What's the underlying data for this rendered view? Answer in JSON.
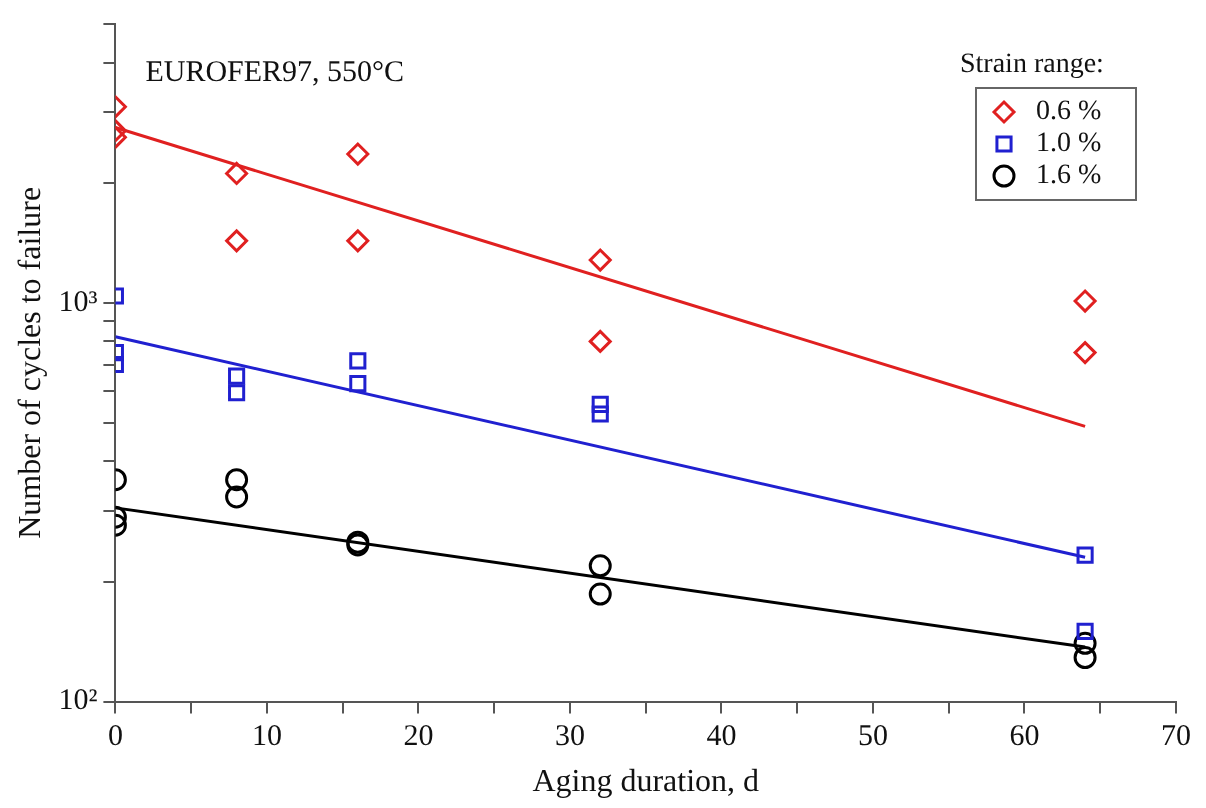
{
  "chart_data": {
    "type": "scatter",
    "xlabel": "Aging duration, d",
    "ylabel": "Number of cycles to failure",
    "legend_title": "Strain range:",
    "legend": "top right",
    "grid": false,
    "log": "y",
    "annotations": [
      "EUROFER97, 550°C"
    ],
    "xlim": [
      0,
      70
    ],
    "ylim": [
      100,
      5000
    ],
    "xticks": [
      0,
      {
        "value": 5,
        "label": null
      },
      10,
      {
        "value": 15,
        "label": null
      },
      20,
      {
        "value": 25,
        "label": null
      },
      30,
      {
        "value": 35,
        "label": null
      },
      40,
      {
        "value": 45,
        "label": null
      },
      50,
      {
        "value": 55,
        "label": null
      },
      60,
      {
        "value": 65,
        "label": null
      },
      70
    ],
    "yticks": [
      {
        "value": 100,
        "label": "10²"
      },
      {
        "value": 200,
        "label": null
      },
      {
        "value": 300,
        "label": null
      },
      {
        "value": 400,
        "label": null
      },
      {
        "value": 500,
        "label": null
      },
      {
        "value": 600,
        "label": null
      },
      {
        "value": 700,
        "label": null
      },
      {
        "value": 800,
        "label": null
      },
      {
        "value": 900,
        "label": null
      },
      {
        "value": 1000,
        "label": "10³"
      },
      {
        "value": 2000,
        "label": null
      },
      {
        "value": 3000,
        "label": null
      },
      {
        "value": 4000,
        "label": null
      },
      {
        "value": 5000,
        "label": null
      }
    ],
    "series": [
      {
        "name": "0.6 %",
        "marker": "diamond",
        "color": "#e02020",
        "x": [
          0,
          0,
          0,
          8,
          8,
          16,
          16,
          32,
          32,
          64,
          64
        ],
        "values": [
          3100,
          2700,
          2600,
          2110,
          1430,
          2360,
          1430,
          1280,
          800,
          1010,
          750
        ]
      },
      {
        "name": "1.0 %",
        "marker": "square",
        "color": "#2020d0",
        "x": [
          0,
          0,
          0,
          8,
          8,
          16,
          16,
          32,
          32,
          64,
          64
        ],
        "values": [
          1040,
          750,
          700,
          655,
          595,
          715,
          627,
          556,
          526,
          233,
          150
        ]
      },
      {
        "name": "1.6 %",
        "marker": "circle",
        "color": "#000000",
        "x": [
          0,
          0,
          0,
          8,
          8,
          16,
          16,
          32,
          32,
          64,
          64
        ],
        "values": [
          360,
          290,
          277,
          360,
          326,
          251,
          247,
          219,
          186,
          140,
          129
        ]
      },
      {
        "type": "line",
        "color": "#e02020",
        "x": [
          0,
          64
        ],
        "values": [
          2750,
          490
        ]
      },
      {
        "type": "line",
        "color": "#2020d0",
        "x": [
          0,
          64
        ],
        "values": [
          822,
          230
        ]
      },
      {
        "type": "line",
        "color": "#000000",
        "x": [
          0,
          64
        ],
        "values": [
          306,
          137
        ]
      }
    ]
  }
}
